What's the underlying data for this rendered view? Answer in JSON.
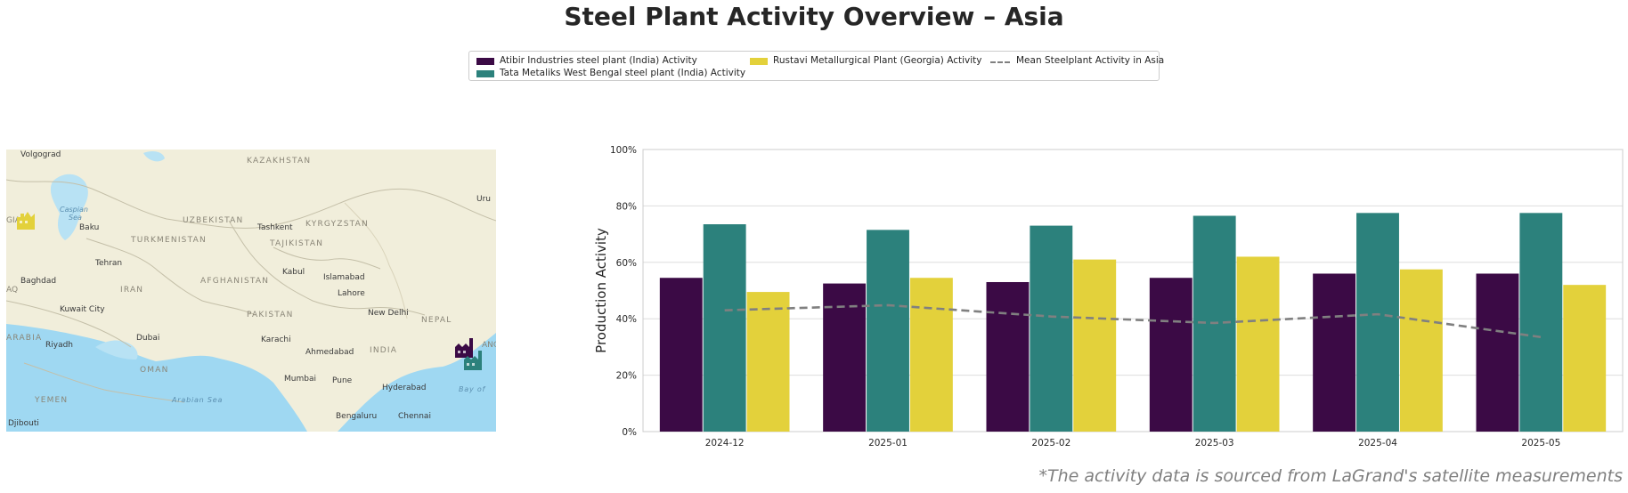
{
  "title": "Steel Plant Activity Overview – Asia",
  "footnote": "*The activity data is sourced from LaGrand's satellite measurements",
  "legend": {
    "items": [
      {
        "label": "Atibir Industries steel plant (India) Activity",
        "color": "#3b0a45"
      },
      {
        "label": "Tata Metaliks West Bengal steel plant (India) Activity",
        "color": "#2c817c"
      },
      {
        "label": "Rustavi Metallurgical Plant (Georgia) Activity",
        "color": "#e3d13b"
      },
      {
        "label": "Mean Steelplant Activity in Asia",
        "color": "#808080",
        "style": "dashed-line"
      }
    ]
  },
  "map": {
    "labels": {
      "volgograd": "Volgograd",
      "kazakhstan": "KAZAKHSTAN",
      "caspian": "Caspian",
      "sea": "Sea",
      "baku": "Baku",
      "uzbekistan": "UZBEKISTAN",
      "tashkent": "Tashkent",
      "kyrgyzstan": "KYRGYZSTAN",
      "turkmenistan": "TURKMENISTAN",
      "tajikistan": "TAJIKISTAN",
      "tehran": "Tehran",
      "kabul": "Kabul",
      "islamabad": "Islamabad",
      "baghdad": "Baghdad",
      "iran": "IRAN",
      "afghanistan": "AFGHANISTAN",
      "lahore": "Lahore",
      "kuwait": "Kuwait City",
      "pakistan": "PAKISTAN",
      "newdelhi": "New Delhi",
      "nepal": "NEPAL",
      "arabia": "ARABIA",
      "riyadh": "Riyadh",
      "dubai": "Dubai",
      "karachi": "Karachi",
      "ahmedabad": "Ahmedabad",
      "india": "INDIA",
      "oman": "OMAN",
      "mumbai": "Mumbai",
      "pune": "Pune",
      "hyderabad": "Hyderabad",
      "yemen": "YEMEN",
      "arabiansea": "Arabian Sea",
      "bayof": "Bay of",
      "bengaluru": "Bengaluru",
      "chennai": "Chennai",
      "djibouti": "Djibouti",
      "uru": "Uru",
      "gia": "GIA",
      "aq": "AQ",
      "ang": "ANG"
    },
    "markers": [
      {
        "plant": "Rustavi Metallurgical Plant (Georgia)",
        "color": "#e3d13b",
        "icon": "factory-icon"
      },
      {
        "plant": "Atibir Industries steel plant (India)",
        "color": "#3b0a45",
        "icon": "factory-icon"
      },
      {
        "plant": "Tata Metaliks West Bengal steel plant (India)",
        "color": "#2c817c",
        "icon": "factory-icon"
      }
    ]
  },
  "chart_data": {
    "type": "bar",
    "categories": [
      "2024-12",
      "2025-01",
      "2025-02",
      "2025-03",
      "2025-04",
      "2025-05"
    ],
    "series": [
      {
        "name": "Atibir Industries steel plant (India) Activity",
        "color": "#3b0a45",
        "values": [
          54.5,
          52.5,
          53,
          54.5,
          56,
          56
        ]
      },
      {
        "name": "Tata Metaliks West Bengal steel plant (India) Activity",
        "color": "#2c817c",
        "values": [
          73.5,
          71.5,
          73,
          76.5,
          77.5,
          77.5
        ]
      },
      {
        "name": "Rustavi Metallurgical Plant (Georgia) Activity",
        "color": "#e3d13b",
        "values": [
          49.5,
          54.5,
          61,
          62,
          57.5,
          52
        ]
      }
    ],
    "mean_line": {
      "name": "Mean Steelplant Activity in Asia",
      "color": "#808080",
      "style": "dashed",
      "values": [
        43,
        44.8,
        40.8,
        38.5,
        41.6,
        33.5
      ]
    },
    "ylabel": "Production Activity",
    "xlabel": "",
    "ylim": [
      0,
      100
    ],
    "yticks": [
      "0%",
      "20%",
      "40%",
      "60%",
      "80%",
      "100%"
    ],
    "grid": "horizontal",
    "legend_position": "top-center"
  }
}
